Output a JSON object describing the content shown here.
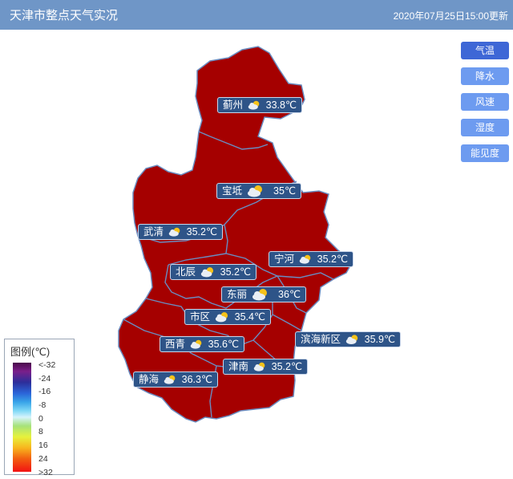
{
  "header": {
    "title": "天津市整点天气实况",
    "time": "2020年07月25日15:00更新"
  },
  "buttons": [
    {
      "label": "气温",
      "active": true
    },
    {
      "label": "降水",
      "active": false
    },
    {
      "label": "风速",
      "active": false
    },
    {
      "label": "湿度",
      "active": false
    },
    {
      "label": "能见度",
      "active": false
    }
  ],
  "map": {
    "fill_color": "#a50000",
    "border_color": "#6a8cc0"
  },
  "stations": [
    {
      "name": "蓟州",
      "temp": "33.8℃",
      "icon": "partly-cloudy-icon"
    },
    {
      "name": "宝坻",
      "temp": "35℃",
      "icon": "partly-cloudy-icon"
    },
    {
      "name": "武清",
      "temp": "35.2℃",
      "icon": "partly-cloudy-icon"
    },
    {
      "name": "宁河",
      "temp": "35.2℃",
      "icon": "partly-cloudy-icon"
    },
    {
      "name": "北辰",
      "temp": "35.2℃",
      "icon": "partly-cloudy-icon"
    },
    {
      "name": "东丽",
      "temp": "36℃",
      "icon": "partly-cloudy-icon"
    },
    {
      "name": "市区",
      "temp": "35.4℃",
      "icon": "partly-cloudy-icon"
    },
    {
      "name": "西青",
      "temp": "35.6℃",
      "icon": "partly-cloudy-icon"
    },
    {
      "name": "滨海新区",
      "temp": "35.9℃",
      "icon": "partly-cloudy-icon"
    },
    {
      "name": "津南",
      "temp": "35.2℃",
      "icon": "partly-cloudy-icon"
    },
    {
      "name": "静海",
      "temp": "36.3℃",
      "icon": "partly-cloudy-icon"
    }
  ],
  "legend": {
    "title": "图例(℃)",
    "ticks": [
      "<-32",
      "-24",
      "-16",
      "-8",
      "0",
      "8",
      "16",
      "24",
      ">32"
    ]
  }
}
